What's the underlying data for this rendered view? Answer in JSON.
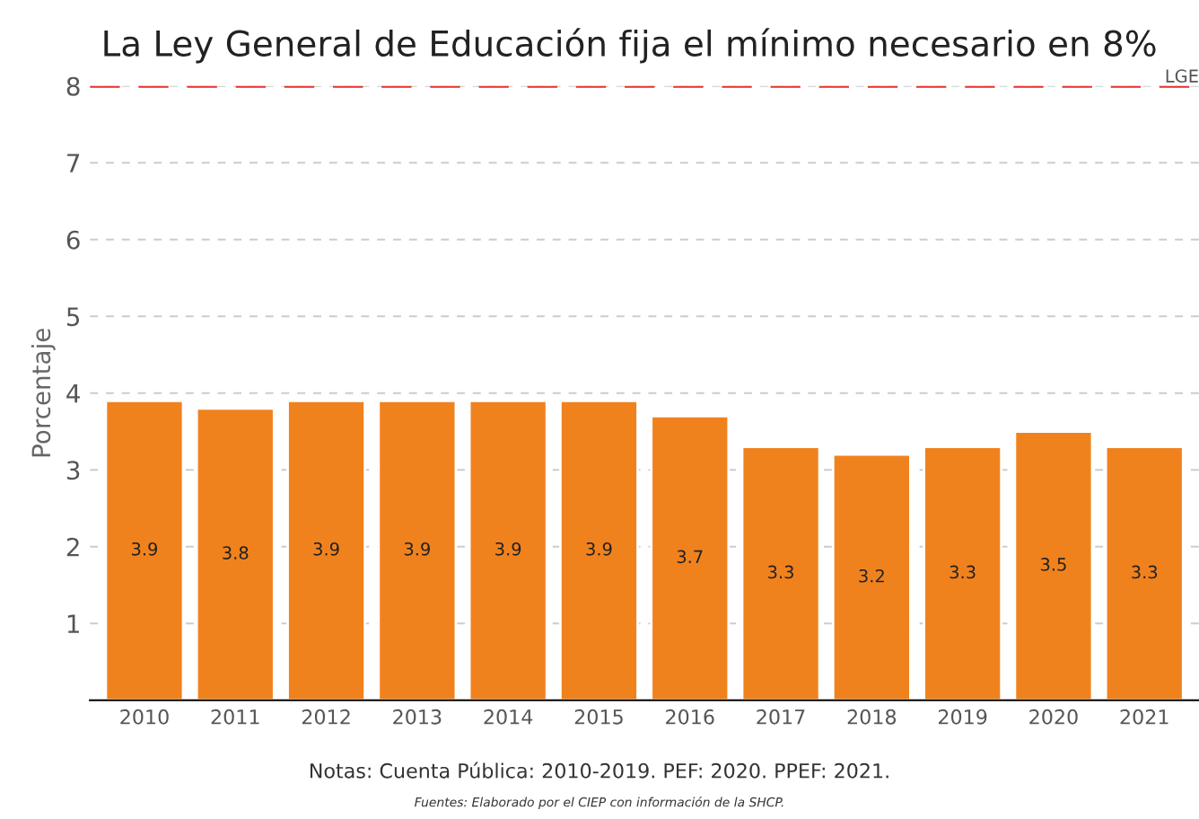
{
  "chart_data": {
    "type": "bar",
    "title": "La Ley General de Educación fija el mínimo necesario en 8%",
    "ylabel": "Porcentaje",
    "categories": [
      "2010",
      "2011",
      "2012",
      "2013",
      "2014",
      "2015",
      "2016",
      "2017",
      "2018",
      "2019",
      "2020",
      "2021"
    ],
    "values": [
      3.9,
      3.8,
      3.9,
      3.9,
      3.9,
      3.9,
      3.7,
      3.3,
      3.2,
      3.3,
      3.5,
      3.3
    ],
    "color": "#f0821e",
    "data_labels": true,
    "ylim": [
      0,
      8
    ],
    "yticks": [
      1,
      2,
      3,
      4,
      5,
      6,
      7,
      8
    ],
    "grid": "y",
    "ref_lines": [
      {
        "axis": "y",
        "value": 8,
        "label": "LGE",
        "color": "#e8312a",
        "line_style": "dashed"
      }
    ],
    "annotations": [
      "Notas: Cuenta Pública: 2010-2019. PEF: 2020. PPEF: 2021.",
      "Fuentes: Elaborado por el CIEP con información de la SHCP."
    ]
  }
}
